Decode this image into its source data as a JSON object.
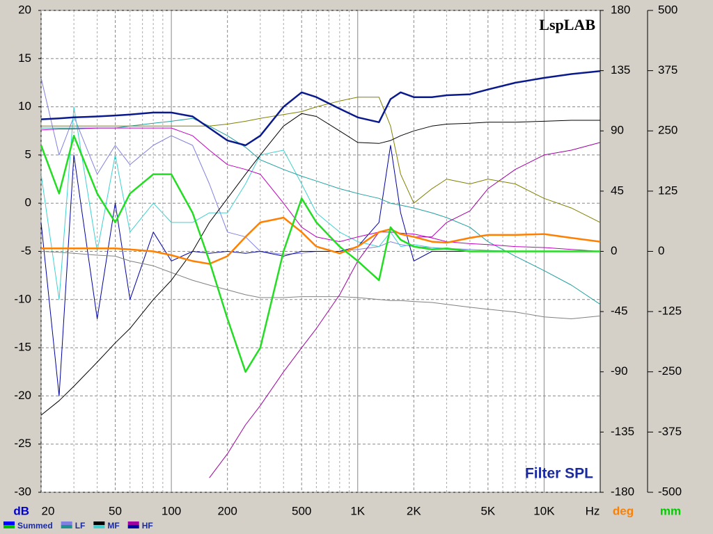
{
  "chart_data": {
    "type": "line",
    "watermark": "LspLAB",
    "title": "Filter SPL",
    "ylabel": "dB",
    "xlabel": "Hz",
    "y2label": "deg",
    "y3label": "mm",
    "log_x": true,
    "grid": true,
    "xlim": [
      20,
      20000
    ],
    "xticks": [
      20,
      50,
      100,
      200,
      500,
      {
        "value": 1000,
        "label": "1K"
      },
      {
        "value": 2000,
        "label": "2K"
      },
      {
        "value": 5000,
        "label": "5K"
      },
      {
        "value": 10000,
        "label": "10K"
      }
    ],
    "xminor": [
      30,
      40,
      60,
      70,
      80,
      90,
      300,
      400,
      600,
      700,
      800,
      900,
      3000,
      4000,
      6000,
      7000,
      8000,
      9000
    ],
    "ylim": [
      -30,
      20
    ],
    "yticks": [
      -30,
      -25,
      -20,
      -15,
      -10,
      -5,
      0,
      5,
      10,
      15,
      20
    ],
    "y2lim": [
      -180,
      180
    ],
    "y2ticks": [
      -180,
      -135,
      -90,
      -45,
      0,
      45,
      90,
      135,
      180
    ],
    "y3lim": [
      -500,
      500
    ],
    "y3ticks": [
      -500,
      -375,
      -250,
      -125,
      0,
      125,
      250,
      375,
      500
    ],
    "legend": [
      {
        "name": "Summed",
        "colors": [
          "#0000ff",
          "#00c000"
        ]
      },
      {
        "name": "LF",
        "colors": [
          "#8080e0",
          "#209090"
        ]
      },
      {
        "name": "MF",
        "colors": [
          "#000000",
          "#40d0d0"
        ]
      },
      {
        "name": "HF",
        "colors": [
          "#a000a0",
          "#0000a0"
        ]
      }
    ],
    "x": [
      20,
      25,
      30,
      40,
      50,
      60,
      80,
      100,
      130,
      160,
      200,
      250,
      300,
      400,
      500,
      600,
      800,
      1000,
      1300,
      1500,
      1700,
      2000,
      2500,
      3000,
      4000,
      5000,
      7000,
      10000,
      14000,
      20000
    ],
    "series": [
      {
        "color": "#8080e0",
        "width": 1,
        "values": [
          13,
          5,
          9,
          3,
          6,
          4,
          6,
          7,
          6,
          2,
          -3,
          -3.5,
          -5,
          -5.3,
          -5.2,
          -5,
          -5,
          -4.8,
          -4.5,
          -4,
          -4.3,
          -4.5,
          -4.6,
          -4.7,
          -4.8,
          -4.9,
          -5,
          -5,
          -5,
          -5
        ]
      },
      {
        "color": "#40d0d0",
        "width": 1,
        "values": [
          3,
          -10,
          10,
          -5,
          5,
          -3,
          0,
          -2,
          -2,
          -1,
          -1,
          2,
          5,
          5.5,
          2,
          -1,
          -3,
          -4,
          -4.5,
          -3,
          -4.5,
          -4.3,
          -4.6,
          -4.8,
          -5,
          -5,
          -5,
          -5,
          -5,
          -5
        ]
      },
      {
        "color": "#0000a0",
        "width": 1,
        "values": [
          -2,
          -20,
          5,
          -12,
          0,
          -10,
          -3,
          -6,
          -5,
          -5.2,
          -5,
          -5.2,
          -5,
          -5.5,
          -5,
          -5,
          -5,
          -4.5,
          -2,
          6,
          -1,
          -6,
          -5,
          -5,
          -5,
          -5,
          -5,
          -5,
          -5,
          -5
        ]
      },
      {
        "color": "#808080",
        "width": 1,
        "values": [
          -5,
          -5.1,
          -5.2,
          -5.4,
          -5.5,
          -6,
          -6.5,
          -7.2,
          -8,
          -8.5,
          -9,
          -9.5,
          -9.8,
          -9.8,
          -9.7,
          -9.7,
          -9.7,
          -9.8,
          -10,
          -10.1,
          -10.1,
          -10.2,
          -10.3,
          -10.5,
          -10.8,
          -11,
          -11.3,
          -11.8,
          -12,
          -11.7
        ]
      },
      {
        "color": "#20a0a0",
        "width": 1,
        "values": [
          7.8,
          7.8,
          7.8,
          7.8,
          7.8,
          8,
          8.3,
          8.5,
          8.8,
          8,
          7,
          5.8,
          4.5,
          3.5,
          2.8,
          2.3,
          1.5,
          1,
          0.5,
          0,
          -0.2,
          -0.5,
          -1,
          -1.5,
          -2.5,
          -4,
          -5.5,
          -7,
          -8.5,
          -10.5
        ]
      },
      {
        "color": "#c000c0",
        "width": 1,
        "values": [
          7.6,
          7.7,
          7.7,
          7.8,
          7.8,
          7.8,
          7.8,
          7.8,
          7,
          5.5,
          4,
          3.5,
          3,
          0,
          -2.5,
          -3.5,
          -4,
          -3.5,
          -3,
          -3,
          -3.1,
          -3.2,
          -3.6,
          -4,
          -4.2,
          -4.3,
          -4.5,
          -4.6,
          -4.8,
          -5
        ]
      },
      {
        "color": "#a000a0",
        "width": 1,
        "values": [
          null,
          null,
          null,
          null,
          null,
          null,
          null,
          null,
          null,
          -28.5,
          -26,
          -23,
          -21,
          -17.5,
          -15,
          -13,
          -9.5,
          -6,
          -3,
          -2.7,
          -3.2,
          -3.5,
          -3.5,
          -2,
          -0.8,
          1.5,
          3.5,
          5,
          5.5,
          6.3
        ]
      },
      {
        "color": "#808000",
        "width": 1,
        "values": [
          8,
          8,
          8,
          8,
          8,
          8,
          8,
          8,
          8,
          8,
          8.2,
          8.5,
          8.8,
          9.2,
          9.5,
          10,
          10.6,
          11,
          11,
          8,
          3,
          0,
          1.5,
          2.5,
          2,
          2.5,
          2,
          0.5,
          -0.5,
          -2
        ]
      },
      {
        "color": "#000000",
        "width": 1,
        "values": [
          -22,
          -20.5,
          -19,
          -16.5,
          -14.5,
          -13,
          -10,
          -8,
          -5,
          -2,
          0.5,
          3,
          5,
          8,
          9.3,
          9,
          7.5,
          6.3,
          6.2,
          6.5,
          7,
          7.5,
          8,
          8.2,
          8.3,
          8.4,
          8.4,
          8.5,
          8.6,
          8.6
        ]
      },
      {
        "color": "#ff8000",
        "width": 2.5,
        "values": [
          -4.7,
          -4.7,
          -4.7,
          -4.7,
          -4.7,
          -4.8,
          -5,
          -5.4,
          -6,
          -6.3,
          -5.5,
          -3.5,
          -2,
          -1.5,
          -3,
          -4.5,
          -5.2,
          -4.5,
          -3,
          -2.7,
          -3.2,
          -3.5,
          -4,
          -4.1,
          -3.6,
          -3.3,
          -3.3,
          -3.2,
          -3.6,
          -4
        ]
      },
      {
        "color": "#22dd22",
        "width": 2.5,
        "values": [
          6,
          1,
          7,
          1,
          -2,
          1,
          3,
          3,
          -1,
          -6,
          -12,
          -17.5,
          -15,
          -5,
          0.5,
          -2,
          -4.5,
          -6,
          -8,
          -2.5,
          -3.8,
          -4.5,
          -4.8,
          -4.7,
          -5,
          -5,
          -5,
          -5,
          -5,
          -5
        ]
      },
      {
        "color": "#0a1a8c",
        "width": 2.5,
        "values": [
          8.7,
          8.8,
          8.9,
          9,
          9.1,
          9.2,
          9.4,
          9.4,
          9,
          7.8,
          6.5,
          6,
          7,
          10,
          11.5,
          11,
          9.8,
          8.9,
          8.4,
          10.8,
          11.5,
          11,
          11,
          11.2,
          11.3,
          11.8,
          12.5,
          13,
          13.4,
          13.7
        ]
      }
    ]
  }
}
